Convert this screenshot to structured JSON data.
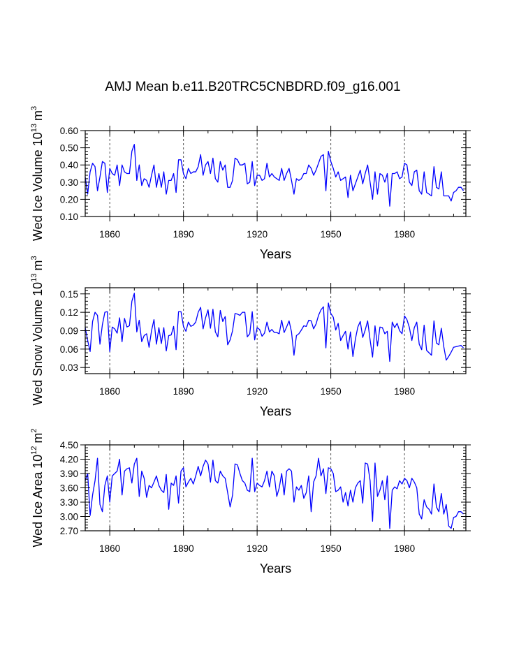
{
  "title": "AMJ Mean b.e11.B20TRC5CNBDRD.f09_g16.001",
  "chart_data": [
    {
      "type": "line",
      "xlabel": "Years",
      "ylabel": "Wed Ice Volume",
      "ylabel_unit": "10^13 m^3",
      "ylabel_base": "10",
      "ylabel_exp": "13",
      "ylabel_unit_base": "m",
      "ylabel_unit_exp": "3",
      "xlim": [
        1850,
        2005
      ],
      "ylim": [
        0.1,
        0.6
      ],
      "yticks": [
        0.1,
        0.2,
        0.3,
        0.4,
        0.5,
        0.6
      ],
      "ytick_labels": [
        "0.10",
        "0.20",
        "0.30",
        "0.40",
        "0.50",
        "0.60"
      ],
      "xticks": [
        1860,
        1890,
        1920,
        1950,
        1980
      ],
      "xtick_labels": [
        "1860",
        "1890",
        "1920",
        "1950",
        "1980"
      ],
      "color": "#0000ff",
      "x_start": 1850,
      "values": [
        0.33,
        0.23,
        0.36,
        0.41,
        0.39,
        0.25,
        0.33,
        0.42,
        0.41,
        0.24,
        0.38,
        0.35,
        0.34,
        0.4,
        0.28,
        0.4,
        0.36,
        0.35,
        0.35,
        0.48,
        0.52,
        0.31,
        0.4,
        0.28,
        0.32,
        0.31,
        0.27,
        0.34,
        0.4,
        0.27,
        0.35,
        0.27,
        0.36,
        0.23,
        0.31,
        0.31,
        0.35,
        0.24,
        0.43,
        0.43,
        0.35,
        0.32,
        0.38,
        0.35,
        0.36,
        0.36,
        0.39,
        0.46,
        0.34,
        0.4,
        0.42,
        0.35,
        0.44,
        0.32,
        0.3,
        0.42,
        0.37,
        0.4,
        0.27,
        0.27,
        0.31,
        0.44,
        0.43,
        0.4,
        0.4,
        0.41,
        0.29,
        0.3,
        0.42,
        0.28,
        0.34,
        0.34,
        0.31,
        0.32,
        0.41,
        0.33,
        0.35,
        0.33,
        0.32,
        0.31,
        0.38,
        0.31,
        0.35,
        0.38,
        0.31,
        0.23,
        0.32,
        0.31,
        0.32,
        0.35,
        0.35,
        0.4,
        0.38,
        0.34,
        0.37,
        0.41,
        0.45,
        0.46,
        0.25,
        0.48,
        0.42,
        0.38,
        0.33,
        0.36,
        0.31,
        0.32,
        0.33,
        0.21,
        0.34,
        0.25,
        0.29,
        0.33,
        0.37,
        0.29,
        0.35,
        0.4,
        0.3,
        0.2,
        0.36,
        0.23,
        0.35,
        0.34,
        0.3,
        0.35,
        0.16,
        0.35,
        0.35,
        0.36,
        0.32,
        0.33,
        0.41,
        0.4,
        0.3,
        0.28,
        0.36,
        0.37,
        0.25,
        0.23,
        0.36,
        0.24,
        0.23,
        0.22,
        0.39,
        0.27,
        0.26,
        0.36,
        0.22,
        0.22,
        0.22,
        0.19,
        0.24,
        0.25,
        0.27,
        0.27,
        0.25
      ]
    },
    {
      "type": "line",
      "xlabel": "Years",
      "ylabel": "Wed Snow Volume",
      "ylabel_unit": "10^13 m^3",
      "ylabel_base": "10",
      "ylabel_exp": "13",
      "ylabel_unit_base": "m",
      "ylabel_unit_exp": "3",
      "xlim": [
        1850,
        2005
      ],
      "ylim": [
        0.02,
        0.16
      ],
      "yticks": [
        0.03,
        0.06,
        0.09,
        0.12,
        0.15
      ],
      "ytick_labels": [
        "0.03",
        "0.06",
        "0.09",
        "0.12",
        "0.15"
      ],
      "xticks": [
        1860,
        1890,
        1920,
        1950,
        1980
      ],
      "xtick_labels": [
        "1860",
        "1890",
        "1920",
        "1950",
        "1980"
      ],
      "color": "#0000ff",
      "x_start": 1850,
      "values": [
        0.095,
        0.074,
        0.056,
        0.105,
        0.12,
        0.115,
        0.068,
        0.1,
        0.12,
        0.121,
        0.056,
        0.096,
        0.093,
        0.086,
        0.111,
        0.072,
        0.11,
        0.096,
        0.098,
        0.138,
        0.151,
        0.088,
        0.107,
        0.072,
        0.082,
        0.085,
        0.063,
        0.09,
        0.108,
        0.068,
        0.095,
        0.069,
        0.095,
        0.057,
        0.082,
        0.083,
        0.097,
        0.059,
        0.121,
        0.121,
        0.097,
        0.089,
        0.104,
        0.097,
        0.099,
        0.104,
        0.12,
        0.128,
        0.093,
        0.111,
        0.124,
        0.094,
        0.125,
        0.088,
        0.08,
        0.123,
        0.105,
        0.113,
        0.067,
        0.075,
        0.09,
        0.118,
        0.117,
        0.115,
        0.12,
        0.12,
        0.08,
        0.085,
        0.121,
        0.075,
        0.095,
        0.092,
        0.081,
        0.086,
        0.104,
        0.088,
        0.092,
        0.087,
        0.087,
        0.085,
        0.107,
        0.087,
        0.096,
        0.106,
        0.088,
        0.05,
        0.082,
        0.085,
        0.091,
        0.098,
        0.097,
        0.107,
        0.106,
        0.093,
        0.101,
        0.115,
        0.124,
        0.129,
        0.062,
        0.135,
        0.118,
        0.112,
        0.091,
        0.102,
        0.074,
        0.082,
        0.089,
        0.06,
        0.088,
        0.048,
        0.076,
        0.096,
        0.105,
        0.079,
        0.091,
        0.106,
        0.075,
        0.047,
        0.098,
        0.065,
        0.096,
        0.095,
        0.085,
        0.089,
        0.04,
        0.104,
        0.095,
        0.102,
        0.09,
        0.085,
        0.114,
        0.108,
        0.095,
        0.074,
        0.095,
        0.104,
        0.068,
        0.059,
        0.099,
        0.058,
        0.054,
        0.05,
        0.106,
        0.07,
        0.067,
        0.094,
        0.064,
        0.042,
        0.048,
        0.055,
        0.063,
        0.064,
        0.065,
        0.066,
        0.062
      ]
    },
    {
      "type": "line",
      "xlabel": "Years",
      "ylabel": "Wed Ice Area",
      "ylabel_unit": "10^12 m^2",
      "ylabel_base": "10",
      "ylabel_exp": "12",
      "ylabel_unit_base": "m",
      "ylabel_unit_exp": "2",
      "xlim": [
        1850,
        2005
      ],
      "ylim": [
        2.7,
        4.5
      ],
      "yticks": [
        2.7,
        3.0,
        3.3,
        3.6,
        3.9,
        4.2,
        4.5
      ],
      "ytick_labels": [
        "2.70",
        "3.00",
        "3.30",
        "3.60",
        "3.90",
        "4.20",
        "4.50"
      ],
      "xticks": [
        1860,
        1890,
        1920,
        1950,
        1980
      ],
      "xtick_labels": [
        "1860",
        "1890",
        "1920",
        "1950",
        "1980"
      ],
      "color": "#0000ff",
      "x_start": 1850,
      "values": [
        3.75,
        3.9,
        3.02,
        3.45,
        3.75,
        4.22,
        3.25,
        3.1,
        3.65,
        3.85,
        3.3,
        3.85,
        3.9,
        3.95,
        4.2,
        3.45,
        3.95,
        4.0,
        4.02,
        3.7,
        4.1,
        4.22,
        3.42,
        3.95,
        3.8,
        3.4,
        3.65,
        3.6,
        3.72,
        3.85,
        3.65,
        3.55,
        3.5,
        3.88,
        3.15,
        3.7,
        3.65,
        3.85,
        3.28,
        3.95,
        4.02,
        3.62,
        3.72,
        3.8,
        3.68,
        3.85,
        4.05,
        3.85,
        4.05,
        4.18,
        4.1,
        3.72,
        4.18,
        3.75,
        3.7,
        3.95,
        3.85,
        3.8,
        3.5,
        3.2,
        3.45,
        4.1,
        4.08,
        3.9,
        3.75,
        3.7,
        3.55,
        3.52,
        4.22,
        3.52,
        3.7,
        3.65,
        3.62,
        3.75,
        3.95,
        3.62,
        3.95,
        3.85,
        3.42,
        3.6,
        3.9,
        3.45,
        3.95,
        4.0,
        3.95,
        3.3,
        3.62,
        3.55,
        3.65,
        3.38,
        3.5,
        3.85,
        3.1,
        3.72,
        3.85,
        4.22,
        3.85,
        4.0,
        3.48,
        4.02,
        4.0,
        3.9,
        3.52,
        3.55,
        3.62,
        3.3,
        3.5,
        3.22,
        3.55,
        3.3,
        3.6,
        3.7,
        3.75,
        3.28,
        4.12,
        4.1,
        3.75,
        2.9,
        4.12,
        3.42,
        3.55,
        3.75,
        3.35,
        3.85,
        2.75,
        3.55,
        3.62,
        3.58,
        3.75,
        3.68,
        3.8,
        3.75,
        3.6,
        3.8,
        3.72,
        3.6,
        3.05,
        2.95,
        3.35,
        3.2,
        3.15,
        3.05,
        3.68,
        3.2,
        3.1,
        3.48,
        3.05,
        3.25,
        2.8,
        2.75,
        2.98,
        3.0,
        3.1,
        3.1,
        3.05
      ]
    }
  ]
}
